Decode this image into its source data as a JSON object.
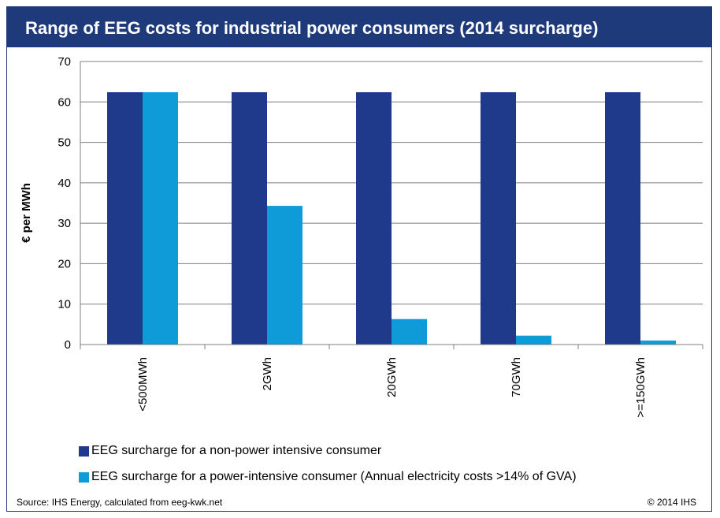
{
  "title": "Range of EEG costs for industrial  power consumers (2014 surcharge)",
  "footer": {
    "source": "Source: IHS Energy, calculated from eeg-kwk.net",
    "copyright": "© 2014 IHS"
  },
  "colors": {
    "title_bg": "#1f3a7a",
    "series_1": "#1f3a8a",
    "series_2": "#0f9ad8"
  },
  "chart_data": {
    "type": "bar",
    "ylabel": "€ per MWh",
    "xlabel": "",
    "ylim": [
      0,
      70
    ],
    "yticks": [
      0,
      10,
      20,
      30,
      40,
      50,
      60,
      70
    ],
    "grid": true,
    "legend_position": "bottom",
    "categories": [
      "<500MWh",
      "2GWh",
      "20GWh",
      "70GWh",
      ">=150GWh"
    ],
    "series": [
      {
        "name": "EEG surcharge for a non-power intensive consumer",
        "values": [
          62.4,
          62.4,
          62.4,
          62.4,
          62.4
        ]
      },
      {
        "name": "EEG surcharge for a power-intensive consumer (Annual electricity costs >14% of GVA)",
        "values": [
          62.4,
          34.3,
          6.3,
          2.2,
          1.0
        ]
      }
    ]
  }
}
